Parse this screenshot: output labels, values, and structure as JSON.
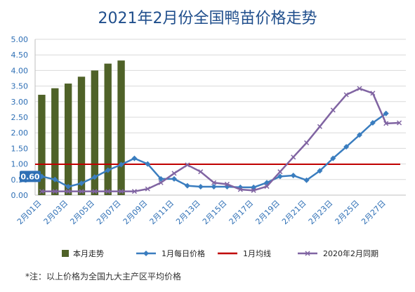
{
  "chart_data": {
    "type": "bar+line",
    "title": "2021年2月份全国鸭苗价格走势",
    "ylim": [
      0,
      5
    ],
    "yticks": [
      "0.00",
      "0.50",
      "1.00",
      "1.50",
      "2.00",
      "2.50",
      "3.00",
      "3.50",
      "4.00",
      "4.50",
      "5.00"
    ],
    "x_labels": [
      "2月01日",
      "2月03日",
      "2月05日",
      "2月07日",
      "2月09日",
      "2月11日",
      "2月13日",
      "2月15日",
      "2月17日",
      "2月19日",
      "2月21日",
      "2月23日",
      "2月25日",
      "2月27日"
    ],
    "days": [
      1,
      2,
      3,
      4,
      5,
      6,
      7,
      8,
      9,
      10,
      11,
      12,
      13,
      14,
      15,
      16,
      17,
      18,
      19,
      20,
      21,
      22,
      23,
      24,
      25,
      26,
      27,
      28
    ],
    "callout": "0.60",
    "series": [
      {
        "name": "本月走势",
        "kind": "bar",
        "color": "#4f6228",
        "values": [
          3.22,
          3.43,
          3.58,
          3.8,
          4.0,
          4.22,
          4.32
        ]
      },
      {
        "name": "1月每日价格",
        "kind": "line",
        "marker": "diamond",
        "color": "#3a7dbf",
        "values": [
          0.6,
          0.5,
          0.27,
          0.38,
          0.58,
          0.8,
          0.98,
          1.18,
          1.0,
          0.52,
          0.52,
          0.3,
          0.27,
          0.27,
          0.27,
          0.25,
          0.25,
          0.4,
          0.6,
          0.63,
          0.48,
          0.78,
          1.18,
          1.55,
          1.93,
          2.32,
          2.62
        ]
      },
      {
        "name": "1月均线",
        "kind": "hline",
        "color": "#c00000",
        "value": 0.99
      },
      {
        "name": "2020年2月同期",
        "kind": "line",
        "marker": "x",
        "color": "#8064a2",
        "values": [
          0.12,
          0.12,
          0.12,
          0.12,
          0.12,
          0.12,
          0.12,
          0.12,
          0.2,
          0.4,
          0.7,
          0.97,
          0.75,
          0.4,
          0.35,
          0.18,
          0.15,
          0.28,
          0.75,
          1.22,
          1.68,
          2.2,
          2.73,
          3.22,
          3.42,
          3.27,
          2.3,
          2.32
        ]
      }
    ]
  },
  "footnote": "*注：以上价格为全国九大主产区平均价格"
}
